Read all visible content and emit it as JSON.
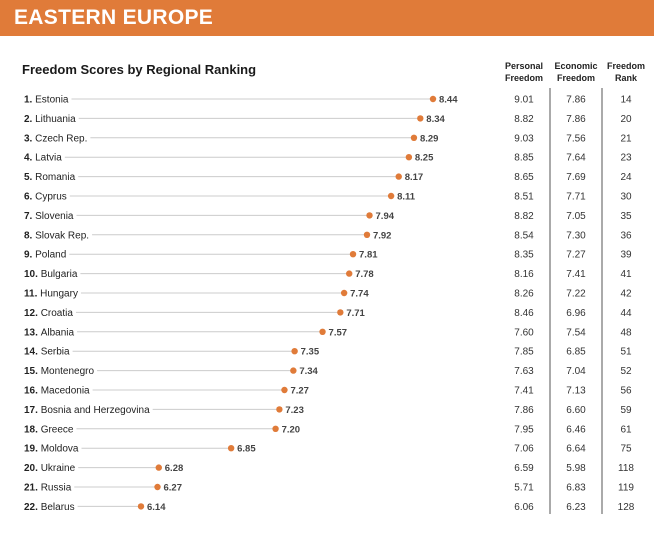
{
  "banner": {
    "title": "EASTERN EUROPE"
  },
  "columns": {
    "personal": [
      "Personal",
      "Freedom"
    ],
    "economic": [
      "Economic",
      "Freedom"
    ],
    "rank": [
      "Freedom",
      "Rank"
    ]
  },
  "colors": {
    "accent": "#e07b39",
    "dot": "#e07b39",
    "leader": "#cccccc",
    "divider": "#555555"
  },
  "chart_data": {
    "type": "scatter",
    "title": "Freedom Scores by Regional Ranking",
    "xlim": [
      6.0,
      8.5
    ],
    "categories": [
      "Estonia",
      "Lithuania",
      "Czech Rep.",
      "Latvia",
      "Romania",
      "Cyprus",
      "Slovenia",
      "Slovak Rep.",
      "Poland",
      "Bulgaria",
      "Hungary",
      "Croatia",
      "Albania",
      "Serbia",
      "Montenegro",
      "Macedonia",
      "Bosnia and Herzegovina",
      "Greece",
      "Moldova",
      "Ukraine",
      "Russia",
      "Belarus"
    ],
    "ranks": [
      "1.",
      "2.",
      "3.",
      "4.",
      "5.",
      "6.",
      "7.",
      "8.",
      "9.",
      "10.",
      "11.",
      "12.",
      "13.",
      "14.",
      "15.",
      "16.",
      "17.",
      "18.",
      "19.",
      "20.",
      "21.",
      "22."
    ],
    "series": [
      {
        "name": "",
        "values": [
          8.44,
          8.34,
          8.29,
          8.25,
          8.17,
          8.11,
          7.94,
          7.92,
          7.81,
          7.78,
          7.74,
          7.71,
          7.57,
          7.35,
          7.34,
          7.27,
          7.23,
          7.2,
          6.85,
          6.28,
          6.27,
          6.14
        ]
      }
    ],
    "value_labels": [
      "8.44",
      "8.34",
      "8.29",
      "8.25",
      "8.17",
      "8.11",
      "7.94",
      "7.92",
      "7.81",
      "7.78",
      "7.74",
      "7.71",
      "7.57",
      "7.35",
      "7.34",
      "7.27",
      "7.23",
      "7.20",
      "6.85",
      "6.28",
      "6.27",
      "6.14"
    ],
    "table": {
      "columns": [
        "Personal Freedom",
        "Economic Freedom",
        "Freedom Rank"
      ],
      "rows": [
        [
          "9.01",
          "7.86",
          "14"
        ],
        [
          "8.82",
          "7.86",
          "20"
        ],
        [
          "9.03",
          "7.56",
          "21"
        ],
        [
          "8.85",
          "7.64",
          "23"
        ],
        [
          "8.65",
          "7.69",
          "24"
        ],
        [
          "8.51",
          "7.71",
          "30"
        ],
        [
          "8.82",
          "7.05",
          "35"
        ],
        [
          "8.54",
          "7.30",
          "36"
        ],
        [
          "8.35",
          "7.27",
          "39"
        ],
        [
          "8.16",
          "7.41",
          "41"
        ],
        [
          "8.26",
          "7.22",
          "42"
        ],
        [
          "8.46",
          "6.96",
          "44"
        ],
        [
          "7.60",
          "7.54",
          "48"
        ],
        [
          "7.85",
          "6.85",
          "51"
        ],
        [
          "7.63",
          "7.04",
          "52"
        ],
        [
          "7.41",
          "7.13",
          "56"
        ],
        [
          "7.86",
          "6.60",
          "59"
        ],
        [
          "7.95",
          "6.46",
          "61"
        ],
        [
          "7.06",
          "6.64",
          "75"
        ],
        [
          "6.59",
          "5.98",
          "118"
        ],
        [
          "5.71",
          "6.83",
          "119"
        ],
        [
          "6.06",
          "6.23",
          "128"
        ]
      ]
    }
  }
}
